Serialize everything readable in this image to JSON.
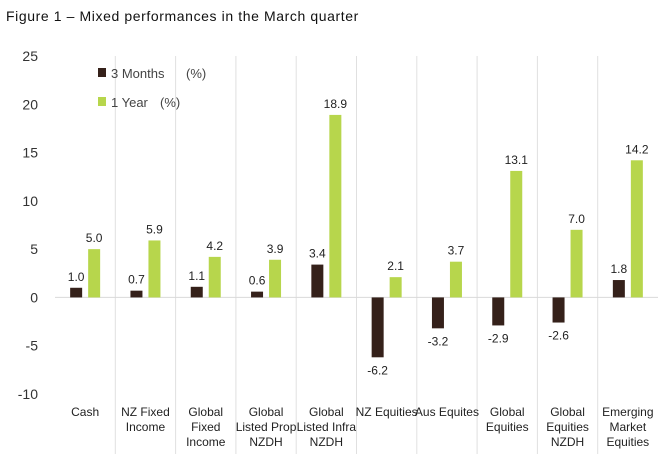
{
  "title": "Figure 1 – Mixed performances in the March quarter",
  "chart_data": {
    "type": "bar",
    "categories": [
      [
        "Cash"
      ],
      [
        "NZ Fixed",
        "Income"
      ],
      [
        "Global",
        "Fixed",
        "Income"
      ],
      [
        "Global",
        "Listed Prop",
        "NZDH"
      ],
      [
        "Global",
        "Listed Infra",
        "NZDH"
      ],
      [
        "NZ Equities"
      ],
      [
        "Aus Equites"
      ],
      [
        "Global",
        "Equities"
      ],
      [
        "Global",
        "Equities",
        "NZDH"
      ],
      [
        "Emerging",
        "Market",
        "Equities"
      ]
    ],
    "series": [
      {
        "name": "3 Months",
        "unit": "(%)",
        "color": "#35211a",
        "values": [
          1.0,
          0.7,
          1.1,
          0.6,
          3.4,
          -6.2,
          -3.2,
          -2.9,
          -2.6,
          1.8
        ]
      },
      {
        "name": "1 Year",
        "unit": "(%)",
        "color": "#b7d64c",
        "values": [
          5.0,
          5.9,
          4.2,
          3.9,
          18.9,
          2.1,
          3.7,
          13.1,
          7.0,
          14.2
        ]
      }
    ],
    "ylim": [
      -10,
      25
    ],
    "yticks": [
      25,
      20,
      15,
      10,
      5,
      0,
      -5,
      -10
    ],
    "legend_position": "top-left",
    "xlabel": "",
    "ylabel": ""
  }
}
